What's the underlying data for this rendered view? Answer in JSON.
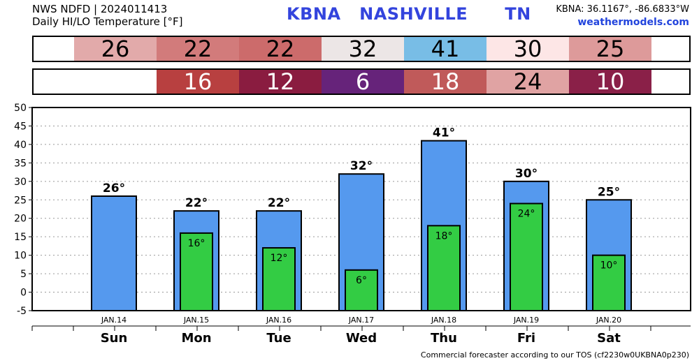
{
  "header": {
    "line1": "NWS NDFD | 2024011413",
    "line2": "Daily HI/LO Temperature [°F]",
    "station": "KBNA   NASHVILLE      TN",
    "coords": "KBNA: 36.1167°, -86.6833°W",
    "site": "weathermodels.com"
  },
  "colors": {
    "hi_bar": "#5599ee",
    "lo_bar": "#33cc44",
    "hi_cells": [
      "#e2aaaa",
      "#d27b7b",
      "#cc6b6b",
      "#ece6e6",
      "#78bde6",
      "#fde6e6",
      "#dd9a9a"
    ],
    "lo_cells": [
      "",
      "#b84040",
      "#8a1c40",
      "#66237a",
      "#c05a5a",
      "#e0a3a3",
      "#8a2048"
    ],
    "lo_text": [
      "#ffffff",
      "#ffffff",
      "#ffffff",
      "#ffffff",
      "#ffffff",
      "#000000",
      "#ffffff"
    ]
  },
  "hi_band": [
    "26",
    "22",
    "22",
    "32",
    "41",
    "30",
    "25"
  ],
  "lo_band": [
    "",
    "16",
    "12",
    "6",
    "18",
    "24",
    "10"
  ],
  "chart_data": {
    "type": "bar",
    "categories": [
      "Sun",
      "Mon",
      "Tue",
      "Wed",
      "Thu",
      "Fri",
      "Sat"
    ],
    "dates": [
      "JAN.14",
      "JAN.15",
      "JAN.16",
      "JAN.17",
      "JAN.18",
      "JAN.19",
      "JAN.20"
    ],
    "series": [
      {
        "values": [
          26,
          22,
          22,
          32,
          41,
          30,
          25
        ]
      },
      {
        "values": [
          null,
          16,
          12,
          6,
          18,
          24,
          10
        ]
      }
    ],
    "ylim": [
      -5,
      50
    ],
    "yticks": [
      -5,
      0,
      5,
      10,
      15,
      20,
      25,
      30,
      35,
      40,
      45,
      50
    ],
    "grid": true
  },
  "footer": "Commercial forecaster according to our TOS (cf2230w0UKBNA0p230)"
}
